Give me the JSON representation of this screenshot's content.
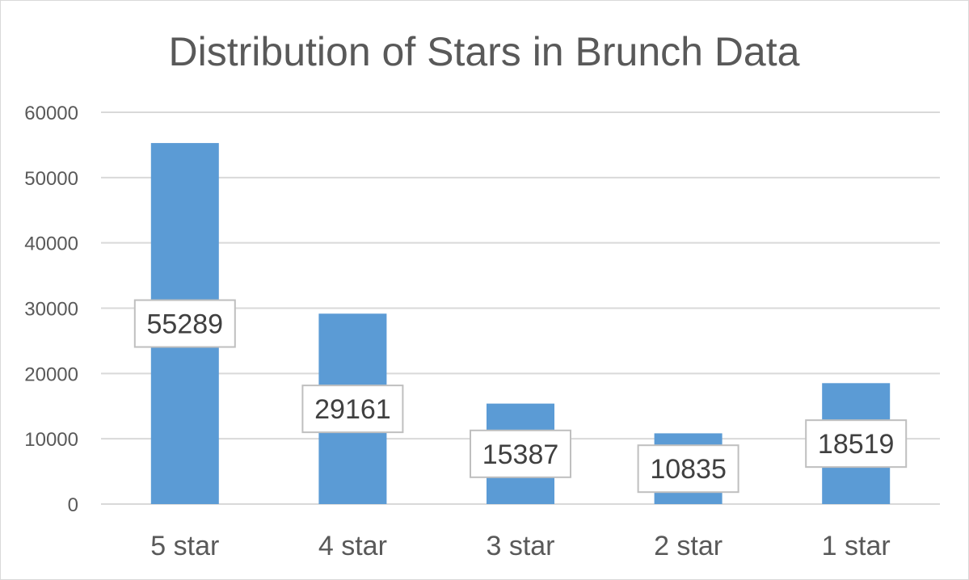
{
  "chart_data": {
    "type": "bar",
    "title": "Distribution of Stars in Brunch Data",
    "xlabel": "",
    "ylabel": "",
    "categories": [
      "5 star",
      "4 star",
      "3 star",
      "2 star",
      "1 star"
    ],
    "values": [
      55289,
      29161,
      15387,
      10835,
      18519
    ],
    "data_labels": [
      "55289",
      "29161",
      "15387",
      "10835",
      "18519"
    ],
    "ylim": [
      0,
      60000
    ],
    "yticks": [
      0,
      10000,
      20000,
      30000,
      40000,
      50000,
      60000
    ],
    "ytick_labels": [
      "0",
      "10000",
      "20000",
      "30000",
      "40000",
      "50000",
      "60000"
    ],
    "grid": true,
    "legend": "none",
    "bar_color": "#5b9bd5"
  }
}
